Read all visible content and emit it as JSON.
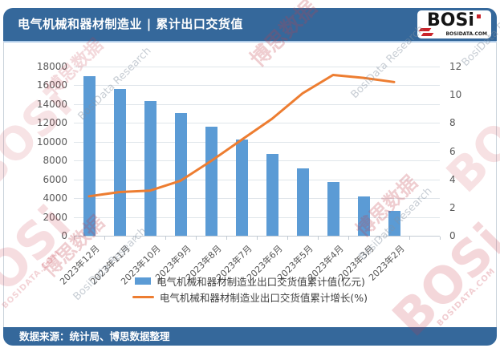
{
  "header": {
    "title": "电气机械和器材制造业 | 累计出口交货值",
    "logo": {
      "text": "BOSi",
      "domain": "BOSIDATA.COM"
    }
  },
  "footer": {
    "source": "数据来源：统计局、博思数据整理"
  },
  "legend": {
    "bar_label": "电气机械和器材制造业出口交货值累计值(亿元)",
    "line_label": "电气机械和器材制造业出口交货值累计增长(%)"
  },
  "watermarks": {
    "logo_text": "BOSi",
    "logo_domain": "BOSIDATA.COM",
    "chinese": "博思数据",
    "research": "BosiData Research"
  },
  "colors": {
    "header_blue": "#35689B",
    "bar_blue": "#5B9BD5",
    "line_orange": "#ED7D31",
    "grid_gray": "#DFE5EA",
    "axis_text": "#595959"
  },
  "chart_data": {
    "type": "bar+line",
    "categories": [
      "2023年12月",
      "2023年11月",
      "2023年10月",
      "2023年9月",
      "2023年8月",
      "2023年7月",
      "2023年6月",
      "2023年5月",
      "2023年4月",
      "2023年3月",
      "2023年2月"
    ],
    "series": [
      {
        "name": "电气机械和器材制造业出口交货值累计值(亿元)",
        "type": "bar",
        "axis": "left",
        "values": [
          16950,
          15650,
          14300,
          13050,
          11600,
          10200,
          8700,
          7150,
          5750,
          4150,
          2650
        ]
      },
      {
        "name": "电气机械和器材制造业出口交货值累计增长(%)",
        "type": "line",
        "axis": "right",
        "values": [
          2.8,
          3.1,
          3.2,
          3.9,
          5.3,
          6.8,
          8.3,
          10.1,
          11.4,
          11.2,
          10.9
        ]
      }
    ],
    "left_axis": {
      "min": 0,
      "max": 18000,
      "step": 2000
    },
    "right_axis": {
      "min": 0,
      "max": 12,
      "step": 2
    },
    "grid": true,
    "legend_position": "bottom"
  }
}
